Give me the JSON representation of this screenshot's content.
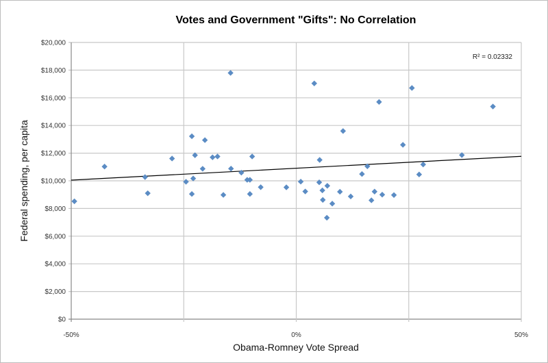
{
  "chart_data": {
    "type": "scatter",
    "title": "Votes and Government \"Gifts\": No Correlation",
    "xlabel": "Obama-Romney Vote Spread",
    "ylabel": "Federal spending, per capita",
    "xlim": [
      -50,
      50
    ],
    "ylim": [
      0,
      20000
    ],
    "x_ticks": [
      "-50%",
      "0%",
      "50%"
    ],
    "x_tick_values": [
      -50,
      0,
      50
    ],
    "x_grid_values": [
      -50,
      -25,
      0,
      25,
      50
    ],
    "y_ticks": [
      "$0",
      "$2,000",
      "$4,000",
      "$6,000",
      "$8,000",
      "$10,000",
      "$12,000",
      "$14,000",
      "$16,000",
      "$18,000",
      "$20,000"
    ],
    "y_tick_values": [
      0,
      2000,
      4000,
      6000,
      8000,
      10000,
      12000,
      14000,
      16000,
      18000,
      20000
    ],
    "grid": true,
    "marker_color": "#5b8cc4",
    "trendline": {
      "type": "linear",
      "x": [
        -50,
        50
      ],
      "y": [
        10050,
        11770
      ],
      "color": "#000000",
      "label": "R² = 0.02332"
    },
    "points": [
      [
        -49.3,
        8520
      ],
      [
        -42.6,
        11030
      ],
      [
        -33.6,
        10270
      ],
      [
        -33.0,
        9100
      ],
      [
        -27.6,
        11610
      ],
      [
        -24.5,
        9930
      ],
      [
        -23.2,
        13220
      ],
      [
        -22.5,
        11850
      ],
      [
        -22.9,
        10170
      ],
      [
        -23.2,
        9050
      ],
      [
        -20.8,
        10870
      ],
      [
        -20.3,
        12940
      ],
      [
        -18.6,
        11700
      ],
      [
        -17.5,
        11760
      ],
      [
        -14.6,
        17800
      ],
      [
        -14.5,
        10880
      ],
      [
        -16.2,
        8980
      ],
      [
        -12.2,
        10590
      ],
      [
        -10.9,
        10070
      ],
      [
        -10.3,
        10070
      ],
      [
        -10.3,
        9050
      ],
      [
        -9.8,
        11760
      ],
      [
        -7.9,
        9540
      ],
      [
        -2.2,
        9530
      ],
      [
        1.0,
        9940
      ],
      [
        2.0,
        9230
      ],
      [
        4.0,
        17040
      ],
      [
        5.2,
        11510
      ],
      [
        5.1,
        9890
      ],
      [
        5.8,
        9310
      ],
      [
        6.9,
        9640
      ],
      [
        5.9,
        8620
      ],
      [
        8.0,
        8350
      ],
      [
        6.8,
        7330
      ],
      [
        9.7,
        9210
      ],
      [
        10.4,
        13600
      ],
      [
        12.1,
        8870
      ],
      [
        14.6,
        10490
      ],
      [
        15.8,
        11050
      ],
      [
        16.7,
        8590
      ],
      [
        17.4,
        9220
      ],
      [
        18.4,
        15700
      ],
      [
        19.1,
        9000
      ],
      [
        21.7,
        8970
      ],
      [
        23.7,
        12600
      ],
      [
        25.7,
        16710
      ],
      [
        27.3,
        10460
      ],
      [
        28.2,
        11180
      ],
      [
        36.8,
        11860
      ],
      [
        43.7,
        15370
      ]
    ]
  }
}
